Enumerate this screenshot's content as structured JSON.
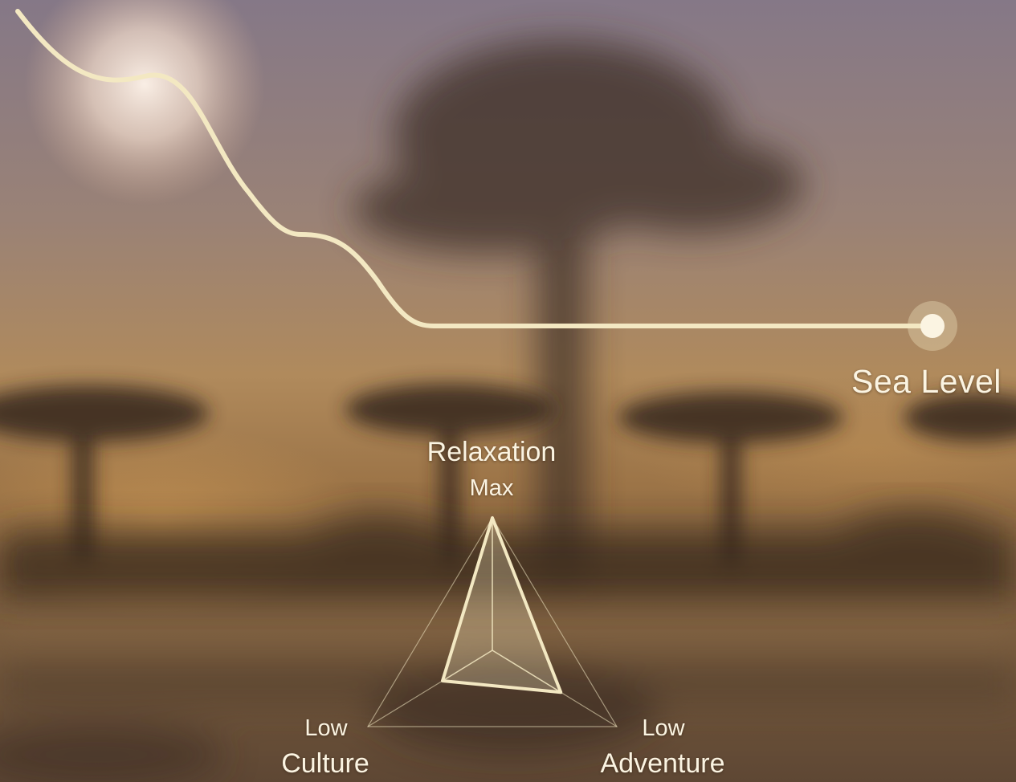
{
  "colors": {
    "line": "#f3e8c2",
    "label": "#fbf4e2",
    "sky_top": "#8d7b86",
    "horizon": "#b58d5b",
    "water": "#6e5436"
  },
  "icons": {
    "endpoint": "circle-marker-icon",
    "sun": "sun-glow",
    "palm": "palm-tree-silhouette"
  },
  "elevation": {
    "end_label": "Sea Level"
  },
  "radar": {
    "axes": [
      {
        "key": "relaxation",
        "title": "Relaxation",
        "value": "Max",
        "level": 1.0
      },
      {
        "key": "culture",
        "title": "Culture",
        "value": "Low",
        "level": 0.4
      },
      {
        "key": "adventure",
        "title": "Adventure",
        "value": "Low",
        "level": 0.55
      }
    ]
  }
}
